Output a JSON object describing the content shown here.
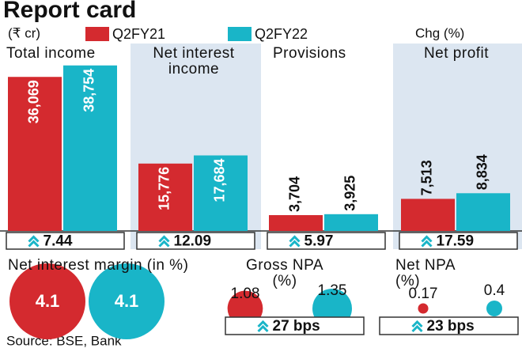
{
  "title": "Report card",
  "unit_label": "(₹ cr)",
  "change_header": "Chg (%)",
  "source": "Source: BSE, Bank",
  "chart_data": [
    {
      "type": "bar",
      "categories": [
        "Total income",
        "Net interest income",
        "Provisions",
        "Net profit"
      ],
      "series": [
        {
          "name": "Q2FY21",
          "color": "#d42a2f",
          "values": [
            36069,
            15776,
            3704,
            7513
          ],
          "value_labels": [
            "36,069",
            "15,776",
            "3,704",
            "7,513"
          ]
        },
        {
          "name": "Q2FY22",
          "color": "#19b5c8",
          "values": [
            38754,
            17684,
            3925,
            8834
          ],
          "value_labels": [
            "38,754",
            "17,684",
            "3,925",
            "8,834"
          ]
        }
      ],
      "changes": [
        7.44,
        12.09,
        5.97,
        17.59
      ],
      "ylim": [
        0,
        40000
      ]
    },
    {
      "type": "bubble",
      "categories": [
        "Net interest margin (in %)",
        "Gross NPA (%)",
        "Net NPA (%)"
      ],
      "series": [
        {
          "color": "#d42a2f",
          "values": [
            4.1,
            1.08,
            0.17
          ]
        },
        {
          "color": "#19b5c8",
          "values": [
            4.1,
            1.35,
            0.4
          ]
        }
      ],
      "changes": [
        null,
        {
          "value": 27,
          "label": "27 bps"
        },
        {
          "value": 23,
          "label": "23 bps"
        }
      ]
    }
  ]
}
